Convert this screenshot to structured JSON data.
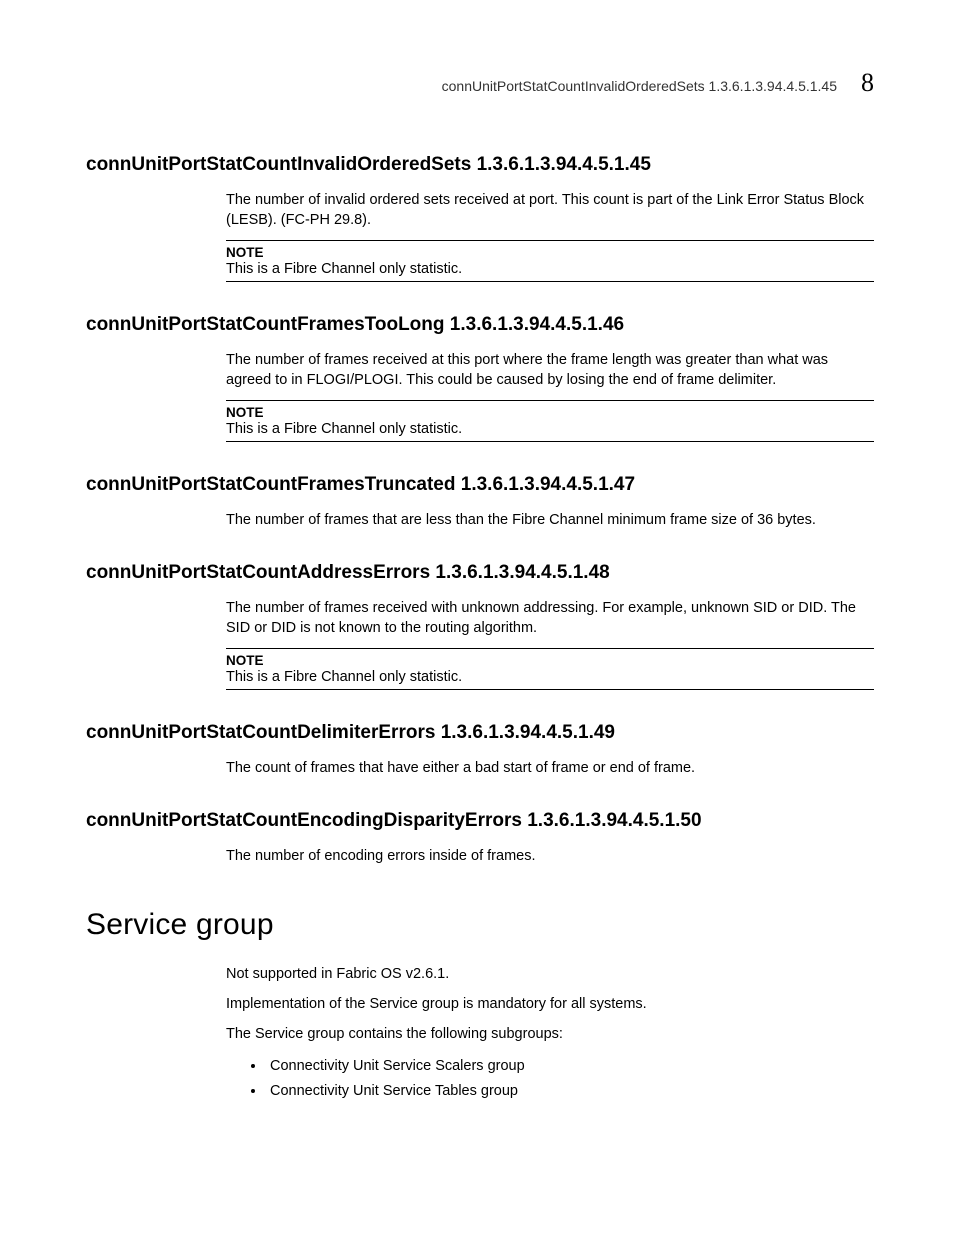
{
  "header": {
    "running_title": "connUnitPortStatCountInvalidOrderedSets 1.3.6.1.3.94.4.5.1.45",
    "chapter_number": "8"
  },
  "note_label": "NOTE",
  "fc_only_note": "This is a Fibre Channel only statistic.",
  "sections": [
    {
      "heading": "connUnitPortStatCountInvalidOrderedSets 1.3.6.1.3.94.4.5.1.45",
      "body": "The number of invalid ordered sets received at port. This count is part of the Link Error Status Block (LESB). (FC-PH 29.8).",
      "has_note": true
    },
    {
      "heading": "connUnitPortStatCountFramesTooLong 1.3.6.1.3.94.4.5.1.46",
      "body": "The number of frames received at this port where the frame length was greater than what was agreed to in FLOGI/PLOGI. This could be caused by losing the end of frame delimiter.",
      "has_note": true
    },
    {
      "heading": "connUnitPortStatCountFramesTruncated 1.3.6.1.3.94.4.5.1.47",
      "body": "The number of frames that are less than the Fibre Channel minimum frame size of 36 bytes.",
      "has_note": false
    },
    {
      "heading": "connUnitPortStatCountAddressErrors 1.3.6.1.3.94.4.5.1.48",
      "body": "The number of frames received with unknown addressing. For example, unknown SID or DID. The SID or DID is not known to the routing algorithm.",
      "has_note": true
    },
    {
      "heading": "connUnitPortStatCountDelimiterErrors 1.3.6.1.3.94.4.5.1.49",
      "body": "The count of frames that have either a bad start of frame or end of frame.",
      "has_note": false
    },
    {
      "heading": "connUnitPortStatCountEncodingDisparityErrors 1.3.6.1.3.94.4.5.1.50",
      "body": "The number of encoding errors inside of frames.",
      "has_note": false
    }
  ],
  "chapter": {
    "title": "Service group",
    "paragraphs": [
      "Not supported in Fabric OS v2.6.1.",
      "Implementation of the Service group is mandatory for all systems.",
      "The Service group contains the following subgroups:"
    ],
    "bullets": [
      "Connectivity Unit Service Scalers group",
      "Connectivity Unit Service Tables group"
    ]
  }
}
